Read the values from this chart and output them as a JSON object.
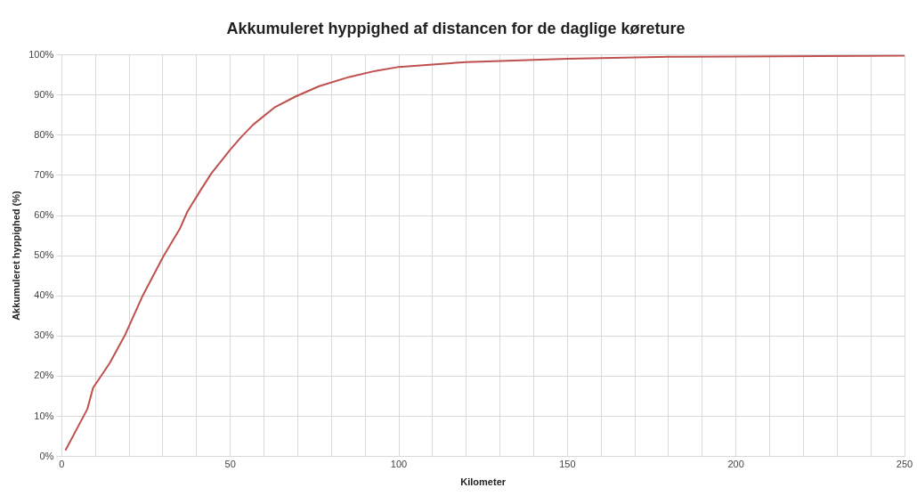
{
  "chart_data": {
    "type": "line",
    "title": "Akkumuleret hyppighed af distancen for de daglige køreture",
    "xlabel": "Kilometer",
    "ylabel": "Akkumuleret hyppighed (%)",
    "x": [
      1.1,
      7.6,
      9.3,
      14.2,
      18.7,
      24,
      30.2,
      35.1,
      37.3,
      40.9,
      44.4,
      49.8,
      53.3,
      56.9,
      63.1,
      69.3,
      76.4,
      85.3,
      93,
      100,
      120,
      150,
      180,
      200,
      250
    ],
    "series": [
      {
        "color": "#c0504d",
        "values": [
          1.5,
          11.8,
          17.1,
          23.2,
          30.1,
          40,
          49.9,
          56.8,
          61,
          65.9,
          70.5,
          76.2,
          79.6,
          82.7,
          86.9,
          89.6,
          92.2,
          94.5,
          96,
          97,
          98.2,
          99,
          99.5,
          99.6,
          99.8
        ]
      }
    ],
    "xlim": [
      0,
      250
    ],
    "xticks": [
      0,
      {
        "value": 10,
        "label": null
      },
      {
        "value": 20,
        "label": null
      },
      {
        "value": 30,
        "label": null
      },
      {
        "value": 40,
        "label": null
      },
      50,
      {
        "value": 60,
        "label": null
      },
      {
        "value": 70,
        "label": null
      },
      {
        "value": 80,
        "label": null
      },
      {
        "value": 90,
        "label": null
      },
      100,
      {
        "value": 110,
        "label": null
      },
      {
        "value": 120,
        "label": null
      },
      {
        "value": 130,
        "label": null
      },
      {
        "value": 140,
        "label": null
      },
      150,
      {
        "value": 160,
        "label": null
      },
      {
        "value": 170,
        "label": null
      },
      {
        "value": 180,
        "label": null
      },
      {
        "value": 190,
        "label": null
      },
      200,
      {
        "value": 210,
        "label": null
      },
      {
        "value": 220,
        "label": null
      },
      {
        "value": 230,
        "label": null
      },
      {
        "value": 240,
        "label": null
      },
      250
    ],
    "ylim": [
      0,
      100
    ],
    "yticks": [
      {
        "value": 0,
        "label": "0%"
      },
      {
        "value": 10,
        "label": "10%"
      },
      {
        "value": 20,
        "label": "20%"
      },
      {
        "value": 30,
        "label": "30%"
      },
      {
        "value": 40,
        "label": "40%"
      },
      {
        "value": 50,
        "label": "50%"
      },
      {
        "value": 60,
        "label": "60%"
      },
      {
        "value": 70,
        "label": "70%"
      },
      {
        "value": 80,
        "label": "80%"
      },
      {
        "value": 90,
        "label": "90%"
      },
      {
        "value": 100,
        "label": "100%"
      }
    ],
    "grid": true,
    "marker": "none",
    "line_style": "solid"
  }
}
